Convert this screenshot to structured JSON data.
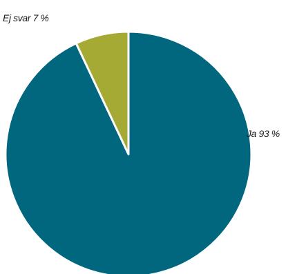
{
  "chart_data": {
    "type": "pie",
    "title": "",
    "legend": "none",
    "slices": [
      {
        "label": "Ja 93 %",
        "category": "Ja",
        "value": 93,
        "color": "#00677f"
      },
      {
        "label": "Ej svar 7 %",
        "category": "Ej svar",
        "value": 7,
        "color": "#a4aa33"
      }
    ],
    "start": "12 o'clock",
    "direction": "counterclockwise"
  }
}
